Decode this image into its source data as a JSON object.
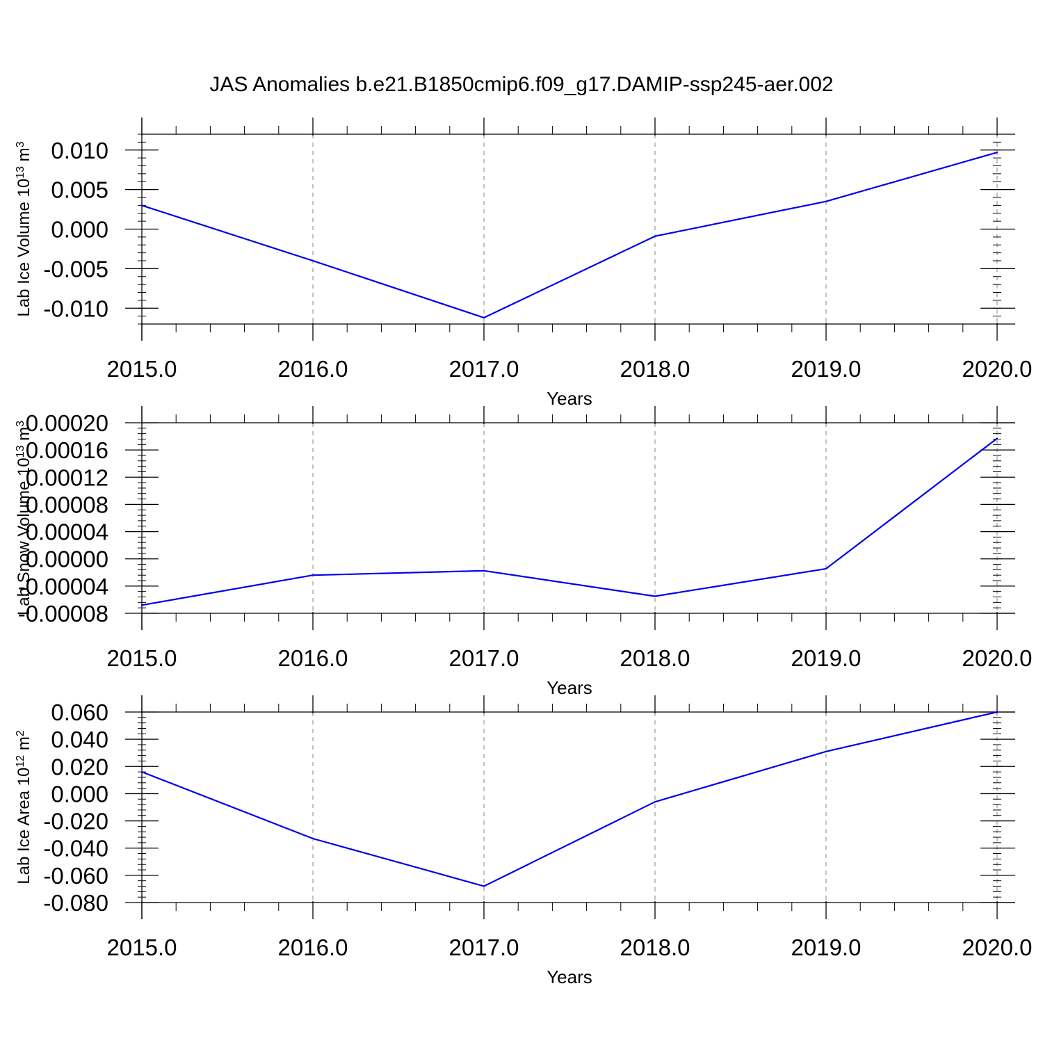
{
  "title": "JAS Anomalies b.e21.B1850cmip6.f09_g17.DAMIP-ssp245-aer.002",
  "colors": {
    "line": "#0000ee",
    "axis": "#000000",
    "grid": "#999999"
  },
  "chart_data": [
    {
      "type": "line",
      "x": [
        2015,
        2016,
        2017,
        2018,
        2019,
        2020
      ],
      "values": [
        0.003,
        -0.004,
        -0.0112,
        -0.0009,
        0.0035,
        0.0097
      ],
      "xlabel": "Years",
      "ylabel": {
        "prefix": "Lab Ice Volume 10",
        "exponent": "13",
        "unit": " m",
        "unit_exponent": "3"
      },
      "xlim": [
        2015,
        2020
      ],
      "ylim": [
        -0.012,
        0.012
      ],
      "x_ticks": [
        "2015.0",
        "2016.0",
        "2017.0",
        "2018.0",
        "2019.0",
        "2020.0"
      ],
      "y_tick_values": [
        0.01,
        0.005,
        0.0,
        -0.005,
        -0.01
      ],
      "y_ticks": [
        "0.010",
        "0.005",
        "0.000",
        "-0.005",
        "-0.010"
      ],
      "grid": "vertical-dashed"
    },
    {
      "type": "line",
      "x": [
        2015,
        2016,
        2017,
        2018,
        2019,
        2020
      ],
      "values": [
        -6.8e-05,
        -2.4e-05,
        -1.75e-05,
        -5.5e-05,
        -1.45e-05,
        0.000177
      ],
      "xlabel": "Years",
      "ylabel": {
        "prefix": "Lab Snow Volume 10",
        "exponent": "13",
        "unit": " m",
        "unit_exponent": "3"
      },
      "xlim": [
        2015,
        2020
      ],
      "ylim": [
        -8e-05,
        0.0002
      ],
      "x_ticks": [
        "2015.0",
        "2016.0",
        "2017.0",
        "2018.0",
        "2019.0",
        "2020.0"
      ],
      "y_tick_values": [
        0.0002,
        0.00016,
        0.00012,
        8e-05,
        4e-05,
        0.0,
        -4e-05,
        -8e-05
      ],
      "y_ticks": [
        "0.00020",
        "0.00016",
        "0.00012",
        "0.00008",
        "0.00004",
        "0.00000",
        "-0.00004",
        "-0.00008"
      ],
      "grid": "vertical-dashed"
    },
    {
      "type": "line",
      "x": [
        2015,
        2016,
        2017,
        2018,
        2019,
        2020
      ],
      "values": [
        0.016,
        -0.033,
        -0.068,
        -0.006,
        0.031,
        0.06
      ],
      "xlabel": "Years",
      "ylabel": {
        "prefix": "Lab Ice Area 10",
        "exponent": "12",
        "unit": " m",
        "unit_exponent": "2"
      },
      "xlim": [
        2015,
        2020
      ],
      "ylim": [
        -0.08,
        0.06
      ],
      "x_ticks": [
        "2015.0",
        "2016.0",
        "2017.0",
        "2018.0",
        "2019.0",
        "2020.0"
      ],
      "y_tick_values": [
        0.06,
        0.04,
        0.02,
        0.0,
        -0.02,
        -0.04,
        -0.06,
        -0.08
      ],
      "y_ticks": [
        "0.060",
        "0.040",
        "0.020",
        "0.000",
        "-0.020",
        "-0.040",
        "-0.060",
        "-0.080"
      ],
      "grid": "vertical-dashed"
    }
  ]
}
